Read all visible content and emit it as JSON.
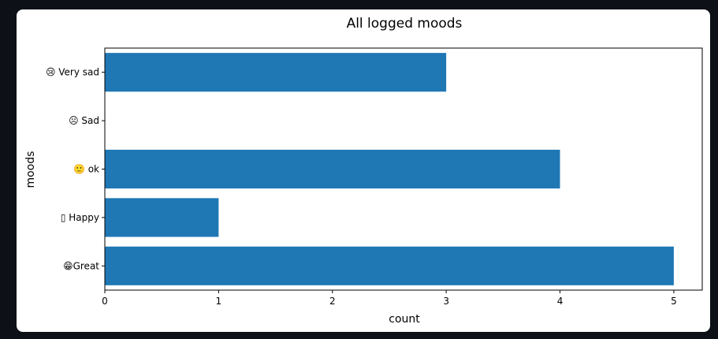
{
  "chart_data": {
    "type": "bar",
    "orientation": "horizontal",
    "title": "All logged moods",
    "xlabel": "count",
    "ylabel": "moods",
    "categories": [
      "😢 Very sad",
      "☹ Sad",
      "🙂 ok",
      "▯ Happy",
      "😁Great"
    ],
    "values": [
      3,
      0,
      4,
      1,
      5
    ],
    "xlim": [
      0,
      5.25
    ],
    "xticks": [
      0,
      1,
      2,
      3,
      4,
      5
    ],
    "bar_color": "#1f77b4",
    "grid": false
  }
}
